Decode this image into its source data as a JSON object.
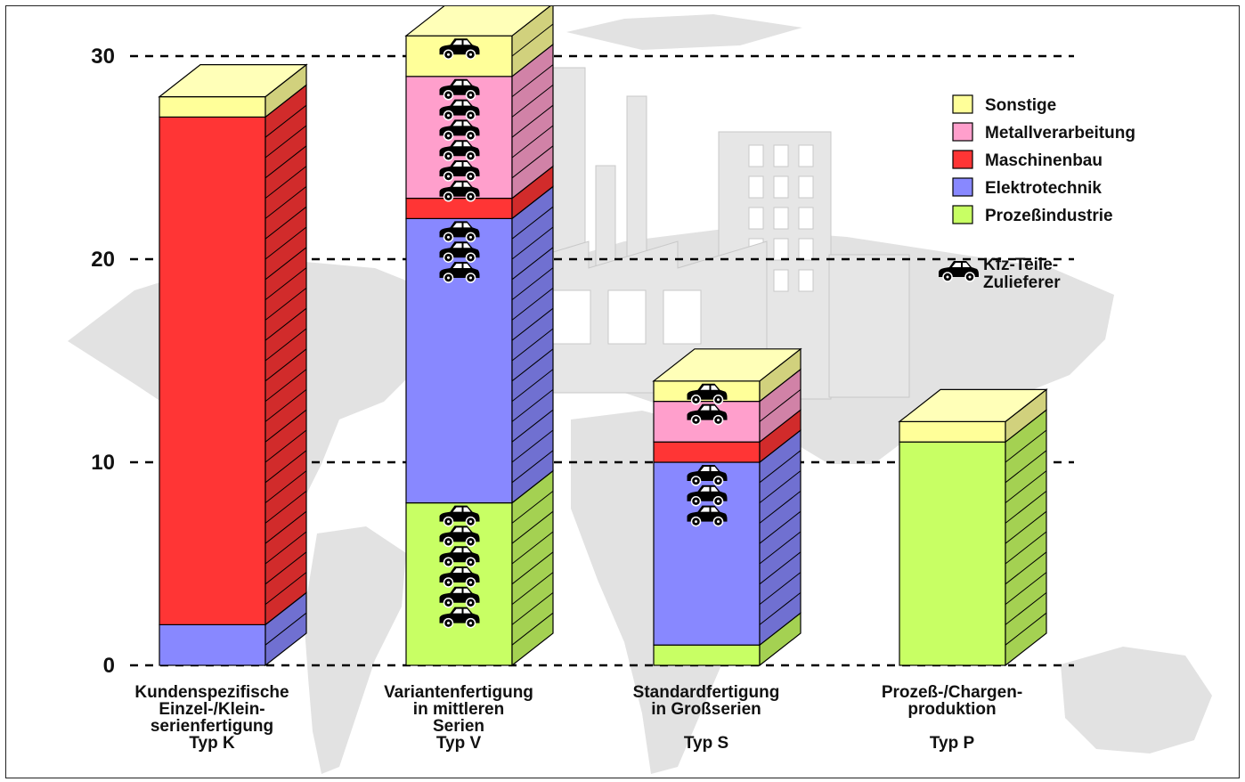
{
  "chart_data": {
    "type": "bar",
    "stacked": true,
    "three_d": true,
    "ylim": [
      0,
      30
    ],
    "yticks": [
      0,
      10,
      20,
      30
    ],
    "grid": "dashed horizontal",
    "legend_position": "top-right",
    "categories": [
      [
        "Kundenspezifische",
        "Einzel-/Klein-",
        "serienfertigung",
        "Typ K"
      ],
      [
        "Variantenfertigung",
        "in mittleren",
        "Serien",
        "Typ V"
      ],
      [
        "Standardfertigung",
        "in Großserien",
        "",
        "Typ S"
      ],
      [
        "Prozeß-/Chargen-",
        "produktion",
        "",
        "Typ P"
      ]
    ],
    "series": [
      {
        "name": "Prozeßindustrie",
        "color": "#c8ff64",
        "values": [
          0,
          8,
          1,
          11
        ]
      },
      {
        "name": "Elektrotechnik",
        "color": "#8888ff",
        "values": [
          2,
          14,
          9,
          0
        ]
      },
      {
        "name": "Maschinenbau",
        "color": "#ff3535",
        "values": [
          25,
          1,
          1,
          0
        ]
      },
      {
        "name": "Metallverarbeitung",
        "color": "#ff9fcc",
        "values": [
          0,
          6,
          2,
          0
        ]
      },
      {
        "name": "Sonstige",
        "color": "#ffff99",
        "values": [
          1,
          2,
          1,
          1
        ]
      }
    ],
    "legend_order": [
      "Sonstige",
      "Metallverarbeitung",
      "Maschinenbau",
      "Elektrotechnik",
      "Prozeßindustrie"
    ],
    "supplier_label": [
      "Kfz-Teile-",
      "Zulieferer"
    ],
    "supplier_icon": "car-icon",
    "supplier_marker_counts": [
      {
        "Prozeßindustrie": 0,
        "Elektrotechnik": 0,
        "Maschinenbau": 0,
        "Metallverarbeitung": 0,
        "Sonstige": 0
      },
      {
        "Prozeßindustrie": 6,
        "Elektrotechnik": 3,
        "Maschinenbau": 0,
        "Metallverarbeitung": 6,
        "Sonstige": 1
      },
      {
        "Prozeßindustrie": 0,
        "Elektrotechnik": 3,
        "Maschinenbau": 0,
        "Metallverarbeitung": 1,
        "Sonstige": 1
      },
      {
        "Prozeßindustrie": 0,
        "Elektrotechnik": 0,
        "Maschinenbau": 0,
        "Metallverarbeitung": 0,
        "Sonstige": 0
      }
    ],
    "background": "grey world map and factory silhouette"
  }
}
